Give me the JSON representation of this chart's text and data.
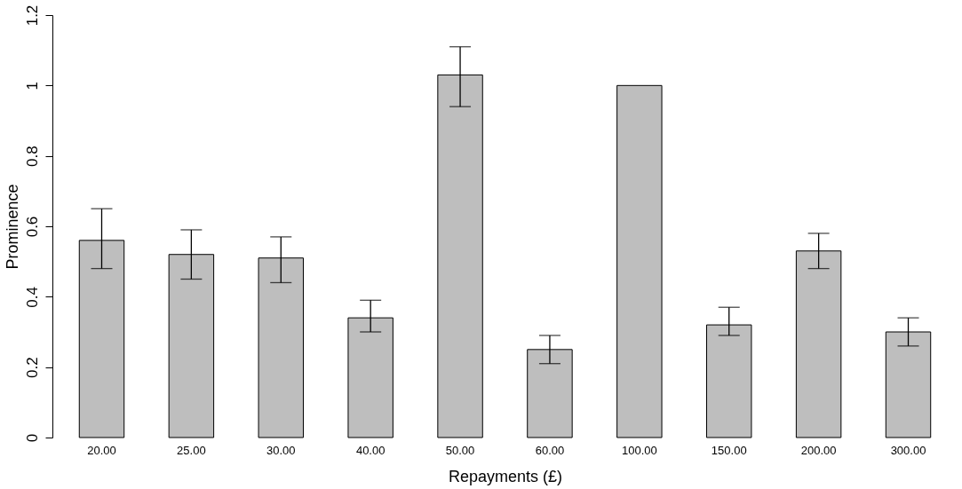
{
  "chart_data": {
    "type": "bar",
    "xlabel": "Repayments (£)",
    "ylabel": "Prominence",
    "categories": [
      "20.00",
      "25.00",
      "30.00",
      "40.00",
      "50.00",
      "60.00",
      "100.00",
      "150.00",
      "200.00",
      "300.00"
    ],
    "values": [
      0.56,
      0.52,
      0.51,
      0.34,
      1.03,
      0.25,
      1.0,
      0.32,
      0.53,
      0.3
    ],
    "errors": [
      [
        0.48,
        0.65
      ],
      [
        0.45,
        0.59
      ],
      [
        0.44,
        0.57
      ],
      [
        0.3,
        0.39
      ],
      [
        0.94,
        1.11
      ],
      [
        0.21,
        0.29
      ],
      null,
      [
        0.29,
        0.37
      ],
      [
        0.48,
        0.58
      ],
      [
        0.26,
        0.34
      ]
    ],
    "color": "#bebebe",
    "ylim": [
      0,
      1.2
    ],
    "yticks": [
      0,
      0.2,
      0.4,
      0.6,
      0.8,
      1,
      1.2
    ],
    "grid": false
  }
}
